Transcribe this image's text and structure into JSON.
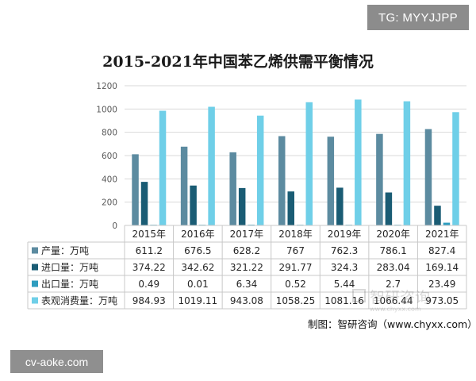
{
  "badges": {
    "tg": "TG: MYYJJPP",
    "footer": "cv-aoke.com"
  },
  "source_text": "制图：智研咨询（www.chyxx.com）",
  "watermark": {
    "cn": "智研咨询",
    "url": "www.chyxx.com"
  },
  "chart_data": {
    "type": "bar",
    "title": "2015-2021年中国苯乙烯供需平衡情况",
    "categories": [
      "2015年",
      "2016年",
      "2017年",
      "2018年",
      "2019年",
      "2020年",
      "2021年"
    ],
    "ylim": [
      0,
      1200
    ],
    "yticks": [
      "0",
      "200",
      "400",
      "600",
      "800",
      "1000",
      "1200"
    ],
    "grid": true,
    "legend": "table-below",
    "series": [
      {
        "name": "产量：万吨",
        "color": "#5c8ba0",
        "values": [
          611.2,
          676.5,
          628.2,
          767,
          762.3,
          786.1,
          827.4
        ],
        "labels": [
          "611.2",
          "676.5",
          "628.2",
          "767",
          "762.3",
          "786.1",
          "827.4"
        ]
      },
      {
        "name": "进口量：万吨",
        "color": "#1a5c74",
        "values": [
          374.22,
          342.62,
          321.22,
          291.77,
          324.3,
          283.04,
          169.14
        ],
        "labels": [
          "374.22",
          "342.62",
          "321.22",
          "291.77",
          "324.3",
          "283.04",
          "169.14"
        ]
      },
      {
        "name": "出口量：万吨",
        "color": "#2e9dbf",
        "values": [
          0.49,
          0.01,
          6.34,
          0.52,
          5.44,
          2.7,
          23.49
        ],
        "labels": [
          "0.49",
          "0.01",
          "6.34",
          "0.52",
          "5.44",
          "2.7",
          "23.49"
        ]
      },
      {
        "name": "表观消费量：万吨",
        "color": "#6fcfe8",
        "values": [
          984.93,
          1019.11,
          943.08,
          1058.25,
          1081.16,
          1066.44,
          973.05
        ],
        "labels": [
          "984.93",
          "1019.11",
          "943.08",
          "1058.25",
          "1081.16",
          "1066.44",
          "973.05"
        ]
      }
    ]
  }
}
